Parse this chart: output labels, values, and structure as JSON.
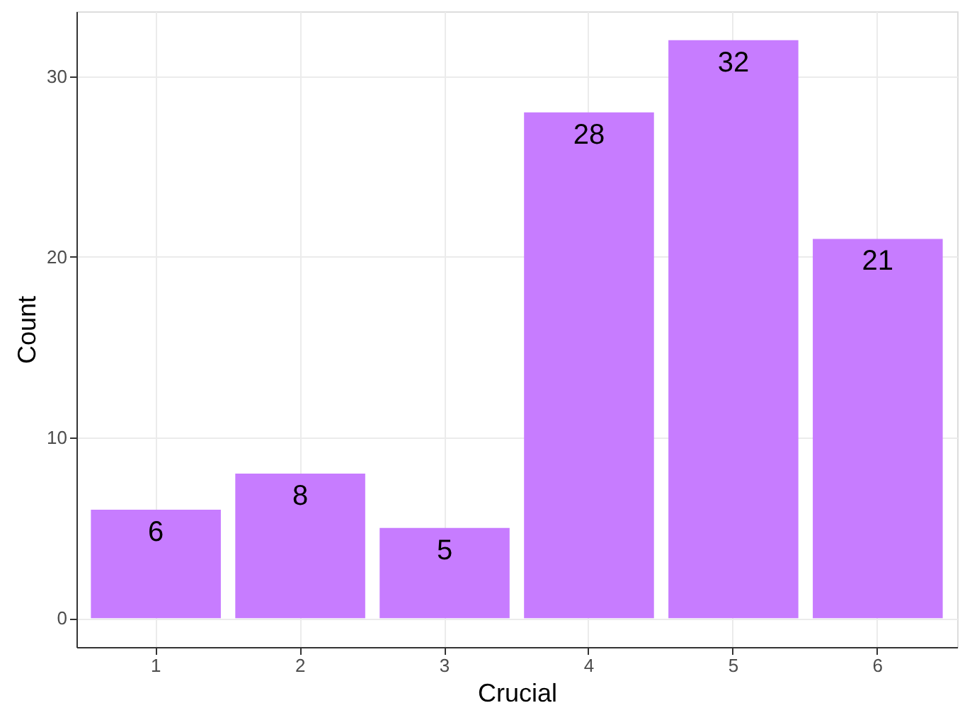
{
  "chart_data": {
    "type": "bar",
    "xlabel": "Crucial",
    "ylabel": "Count",
    "categories": [
      "1",
      "2",
      "3",
      "4",
      "5",
      "6"
    ],
    "values": [
      6,
      8,
      5,
      28,
      32,
      21
    ],
    "color": "#c77cff",
    "ylim": [
      -1.6,
      33.6
    ],
    "yticks": [
      0,
      10,
      20,
      30
    ],
    "grid": true,
    "data_labels": true
  }
}
